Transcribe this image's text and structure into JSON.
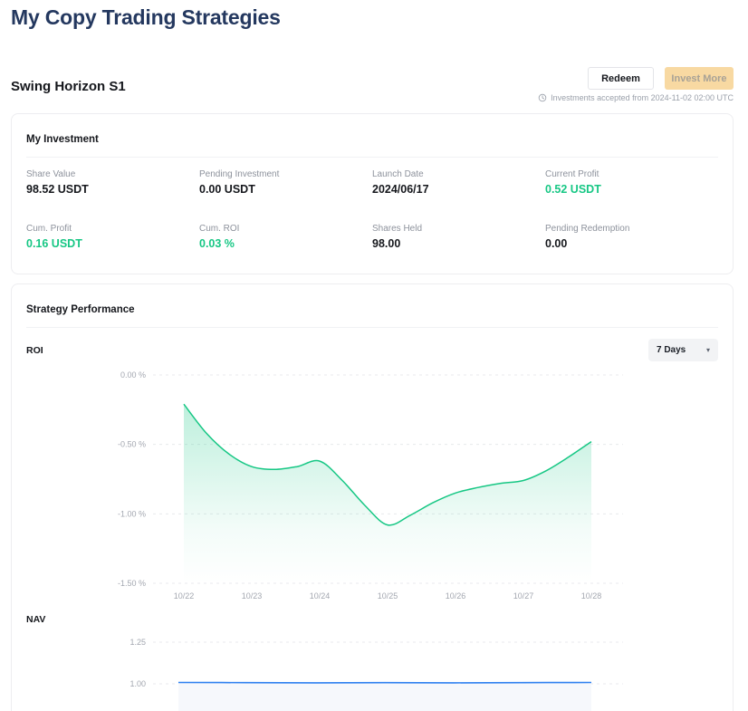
{
  "page": {
    "title": "My Copy Trading Strategies"
  },
  "strategy_header": {
    "name": "Swing Horizon S1",
    "redeem_label": "Redeem",
    "invest_more_label": "Invest More",
    "notice": "Investments accepted from 2024-11-02 02:00 UTC"
  },
  "my_investment": {
    "title": "My Investment",
    "stats": [
      {
        "label": "Share Value",
        "value": "98.52 USDT",
        "color": "dark"
      },
      {
        "label": "Pending Investment",
        "value": "0.00 USDT",
        "color": "dark"
      },
      {
        "label": "Launch Date",
        "value": "2024/06/17",
        "color": "dark"
      },
      {
        "label": "Current Profit",
        "value": "0.52 USDT",
        "color": "green"
      },
      {
        "label": "Cum. Profit",
        "value": "0.16 USDT",
        "color": "green"
      },
      {
        "label": "Cum. ROI",
        "value": "0.03 %",
        "color": "green"
      },
      {
        "label": "Shares Held",
        "value": "98.00",
        "color": "dark"
      },
      {
        "label": "Pending Redemption",
        "value": "0.00",
        "color": "dark"
      }
    ]
  },
  "performance": {
    "title": "Strategy Performance",
    "roi_label": "ROI",
    "nav_label": "NAV",
    "range_value": "7 Days",
    "caret_icon": "▾"
  },
  "colors": {
    "title_navy": "#24385f",
    "accent_green": "#16c784",
    "nav_line_blue": "#2e80f0",
    "invest_more_bg": "#f8d9a2",
    "invest_more_text": "#a8a296"
  },
  "chart_data": [
    {
      "type": "area",
      "title": "ROI",
      "unit": "%",
      "grid": "dashed",
      "x_tick_labels": [
        "10/22",
        "10/23",
        "10/24",
        "10/25",
        "10/26",
        "10/27",
        "10/28"
      ],
      "y_tick_labels": [
        "0.00 %",
        "-0.50 %",
        "-1.00 %",
        "-1.50 %"
      ],
      "y_ticks": [
        0,
        -0.5,
        -1.0,
        -1.5
      ],
      "ylim": [
        -1.5,
        0
      ],
      "x_days": [
        0,
        0.333,
        0.667,
        1,
        1.333,
        1.667,
        2,
        2.333,
        2.667,
        3,
        3.333,
        3.667,
        4,
        4.333,
        4.667,
        5,
        5.333,
        5.667,
        6
      ],
      "values": [
        -0.21,
        -0.42,
        -0.57,
        -0.66,
        -0.68,
        -0.66,
        -0.62,
        -0.76,
        -0.94,
        -1.08,
        -1.01,
        -0.92,
        -0.85,
        -0.81,
        -0.78,
        -0.76,
        -0.69,
        -0.59,
        -0.48
      ],
      "line_color": "#16c784"
    },
    {
      "type": "line",
      "title": "NAV",
      "x_tick_labels": [],
      "y_tick_labels": [
        "1.25",
        "1.00"
      ],
      "y_ticks": [
        1.25,
        1.0
      ],
      "x_days": [
        0,
        1,
        2,
        3,
        4,
        5,
        6
      ],
      "values": [
        1.008,
        1.007,
        1.006,
        1.007,
        1.006,
        1.007,
        1.008
      ],
      "line_color": "#2e80f0",
      "fill_color": "#f6f8fc"
    }
  ]
}
